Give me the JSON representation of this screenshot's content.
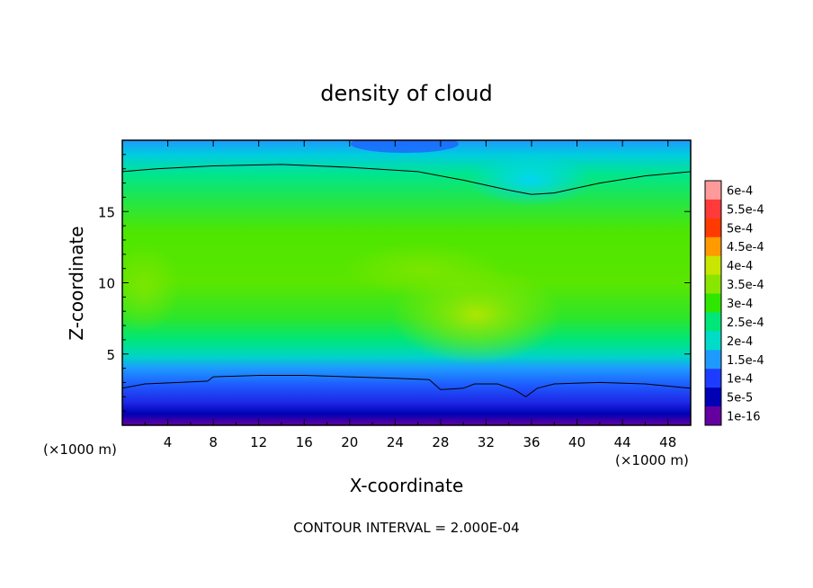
{
  "chart_data": {
    "type": "heatmap",
    "title": "density of cloud",
    "xlabel": "X-coordinate",
    "ylabel": "Z-coordinate",
    "x_unit_left": "(×1000 m)",
    "x_unit_right": "(×1000 m)",
    "footer": "CONTOUR INTERVAL = 2.000E-04",
    "xlim": [
      0,
      50
    ],
    "ylim": [
      0,
      20
    ],
    "x_ticks": [
      "4",
      "8",
      "12",
      "16",
      "20",
      "24",
      "28",
      "32",
      "36",
      "40",
      "44",
      "48"
    ],
    "y_ticks": [
      "5",
      "10",
      "15"
    ],
    "colorbar": {
      "labels": [
        "6e-4",
        "5.5e-4",
        "5e-4",
        "4.5e-4",
        "4e-4",
        "3.5e-4",
        "3e-4",
        "2.5e-4",
        "2e-4",
        "1.5e-4",
        "1e-4",
        "5e-5",
        "1e-16"
      ],
      "colors": [
        "#ff9a9a",
        "#ff3a3a",
        "#ff3a00",
        "#ff9a00",
        "#c8e600",
        "#8ae600",
        "#2ee600",
        "#00e678",
        "#00dcc8",
        "#1e9aff",
        "#1e3cff",
        "#0000b4",
        "#6400a0"
      ]
    },
    "contour_levels": [
      0.0002
    ],
    "contour_lines": [
      {
        "x": [
          0,
          3,
          8,
          14,
          20,
          26,
          30,
          34,
          36,
          38,
          42,
          46,
          50
        ],
        "z": [
          17.8,
          18.0,
          18.2,
          18.3,
          18.1,
          17.8,
          17.2,
          16.5,
          16.2,
          16.3,
          17.0,
          17.5,
          17.8
        ]
      },
      {
        "x": [
          0,
          2,
          5,
          7.5,
          8,
          12,
          16,
          20,
          24,
          27,
          28,
          30,
          31,
          33,
          34.5,
          35.5,
          36.5,
          38,
          42,
          46,
          50
        ],
        "z": [
          2.6,
          2.9,
          3.0,
          3.1,
          3.4,
          3.5,
          3.5,
          3.4,
          3.3,
          3.2,
          2.5,
          2.6,
          2.9,
          2.9,
          2.5,
          2.0,
          2.6,
          2.9,
          3.0,
          2.9,
          2.6
        ]
      }
    ]
  }
}
